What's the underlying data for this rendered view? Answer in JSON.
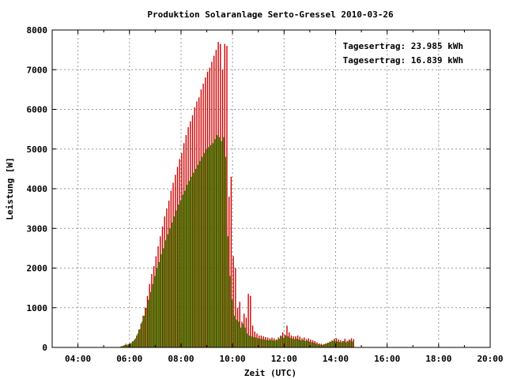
{
  "chart_data": {
    "type": "bar",
    "title": "Produktion Solaranlage Serto-Gressel 2010-03-26",
    "xlabel": "Zeit (UTC)",
    "ylabel": "Leistung [W]",
    "x_unit": "hours UTC",
    "xlim": [
      3.0,
      20.0
    ],
    "ylim": [
      0,
      8000
    ],
    "x_ticks": [
      "04:00",
      "06:00",
      "08:00",
      "10:00",
      "12:00",
      "14:00",
      "16:00",
      "18:00",
      "20:00"
    ],
    "y_ticks": [
      "0",
      "1000",
      "2000",
      "3000",
      "4000",
      "5000",
      "6000",
      "7000",
      "8000"
    ],
    "grid": true,
    "legend_position": "top-right",
    "legend": [
      {
        "text": "Tagesertrag: 23.985 kWh",
        "color": "#cc0000"
      },
      {
        "text": "Tagesertrag: 16.839 kWh",
        "color": "#00aa00"
      }
    ],
    "interval_minutes": 5,
    "start_time": 5.583,
    "series": [
      {
        "color": "#cc0000",
        "values": [
          0,
          30,
          50,
          90,
          80,
          100,
          150,
          200,
          300,
          450,
          600,
          800,
          1000,
          1300,
          1600,
          1850,
          2050,
          2300,
          2550,
          2800,
          3050,
          3300,
          3500,
          3700,
          3950,
          4150,
          4350,
          4550,
          4750,
          4900,
          5150,
          5350,
          5550,
          5700,
          5850,
          6050,
          6200,
          6300,
          6500,
          6650,
          6800,
          6950,
          7050,
          7200,
          7350,
          7500,
          7700,
          7650,
          7000,
          7650,
          7600,
          3800,
          4300,
          2300,
          2000,
          1000,
          1150,
          650,
          850,
          750,
          1350,
          1300,
          550,
          400,
          350,
          300,
          300,
          280,
          260,
          250,
          230,
          250,
          230,
          200,
          250,
          300,
          380,
          320,
          550,
          380,
          300,
          280,
          280,
          300,
          270,
          230,
          250,
          210,
          230,
          200,
          180,
          160,
          130,
          100,
          90,
          80,
          100,
          120,
          150,
          180,
          220,
          230,
          200,
          180,
          160,
          220,
          170,
          200,
          230,
          210
        ]
      },
      {
        "color": "#00aa00",
        "values": [
          0,
          20,
          40,
          60,
          60,
          80,
          110,
          160,
          230,
          350,
          460,
          650,
          800,
          1000,
          1200,
          1400,
          1600,
          1800,
          2000,
          2150,
          2350,
          2500,
          2700,
          2850,
          3000,
          3150,
          3300,
          3450,
          3600,
          3700,
          3850,
          3950,
          4100,
          4200,
          4300,
          4400,
          4500,
          4600,
          4700,
          4800,
          4900,
          5000,
          5050,
          5100,
          5150,
          5250,
          5350,
          5300,
          5200,
          5300,
          4800,
          2800,
          1800,
          1200,
          800,
          700,
          650,
          500,
          600,
          500,
          350,
          300,
          280,
          260,
          250,
          230,
          220,
          210,
          200,
          190,
          180,
          190,
          180,
          170,
          190,
          220,
          280,
          240,
          300,
          280,
          240,
          220,
          210,
          220,
          200,
          180,
          190,
          160,
          170,
          150,
          130,
          120,
          100,
          80,
          70,
          60,
          80,
          100,
          120,
          140,
          160,
          170,
          150,
          140,
          130,
          160,
          130,
          150,
          170,
          150
        ]
      }
    ]
  }
}
